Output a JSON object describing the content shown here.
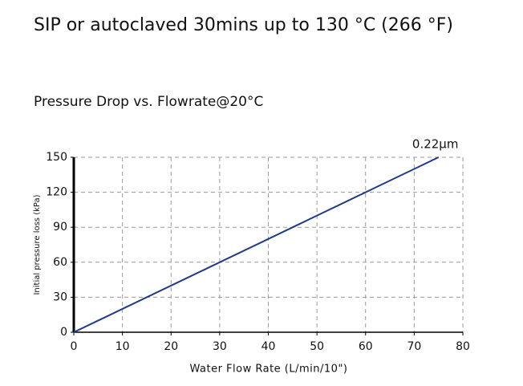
{
  "heading": "SIP or autoclaved 30mins up to 130 °C (266 °F)",
  "chart_data": {
    "type": "line",
    "title": "Pressure Drop vs. Flowrate@20°C",
    "x_label": "Water Flow Rate (L/min/10\")",
    "y_label": "Initial pressure loss  (kPa)",
    "x": [
      0,
      75
    ],
    "series": [
      {
        "name": "0.22μm",
        "color": "#1f3a8a",
        "values": [
          0,
          150
        ]
      }
    ],
    "xlim": [
      0,
      80
    ],
    "xticks": [
      0,
      10,
      20,
      30,
      40,
      50,
      60,
      70,
      80
    ],
    "ylim": [
      0,
      150
    ],
    "yticks": [
      0,
      30,
      60,
      90,
      120,
      150
    ],
    "grid": true
  }
}
